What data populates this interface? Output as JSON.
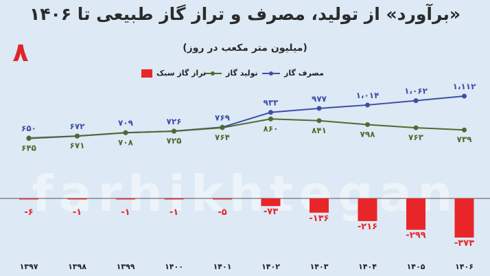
{
  "header": {
    "title": "«برآورد» از تولید، مصرف و تراز گاز طبیعی تا ۱۴۰۶",
    "subtitle": "(میلیون متر مکعب در روز)",
    "badge": "۸"
  },
  "watermark": {
    "text": "farhikhtegan"
  },
  "chart_data": {
    "type": "line",
    "categories": [
      "۱۳۹۷",
      "۱۳۹۸",
      "۱۳۹۹",
      "۱۴۰۰",
      "۱۴۰۱",
      "۱۴۰۲",
      "۱۴۰۳",
      "۱۴۰۴",
      "۱۴۰۵",
      "۱۴۰۶"
    ],
    "series": [
      {
        "name": "مصرف گاز",
        "type": "line",
        "color": "#3b4fa5",
        "values": [
          650,
          672,
          709,
          726,
          769,
          933,
          977,
          1014,
          1062,
          1112
        ],
        "labels": [
          "۶۵۰",
          "۶۷۲",
          "۷۰۹",
          "۷۲۶",
          "۷۶۹",
          "۹۳۳",
          "۹۷۷",
          "۱،۰۱۴",
          "۱،۰۶۲",
          "۱،۱۱۲"
        ]
      },
      {
        "name": "تولید گاز",
        "type": "line",
        "color": "#4d6b2e",
        "values": [
          645,
          671,
          708,
          725,
          764,
          860,
          841,
          798,
          763,
          739
        ],
        "labels": [
          "۶۴۵",
          "۶۷۱",
          "۷۰۸",
          "۷۲۵",
          "۷۶۴",
          "۸۶۰",
          "۸۴۱",
          "۷۹۸",
          "۷۶۳",
          "۷۳۹"
        ]
      },
      {
        "name": "تراز گاز سبک",
        "type": "bar",
        "color": "#e8262a",
        "values": [
          -6,
          -1,
          -1,
          -1,
          -5,
          -73,
          -136,
          -216,
          -299,
          -373
        ],
        "labels": [
          "-۶",
          "-۱",
          "-۱",
          "-۱",
          "-۵",
          "-۷۳",
          "-۱۳۶",
          "-۲۱۶",
          "-۲۹۹",
          "-۳۷۳"
        ]
      }
    ],
    "legend_position": "top",
    "grid": false
  }
}
